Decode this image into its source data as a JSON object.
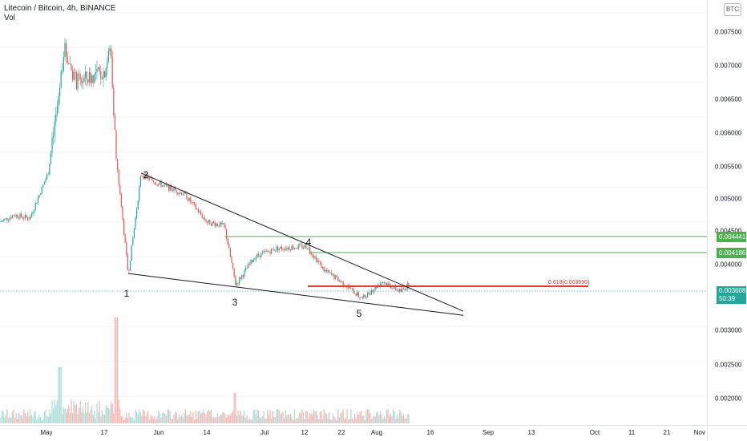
{
  "legend": {
    "title": "Litecoin / Bitcoin, 4h, BINANCE",
    "volume": "Vol"
  },
  "currency_badge": "BTC",
  "price_axis": {
    "ticks": [
      "0.007500",
      "0.007000",
      "0.006500",
      "0.006000",
      "0.005500",
      "0.005000",
      "0.004500",
      "0.004000",
      "0.003000",
      "0.002500",
      "0.002000"
    ]
  },
  "time_axis": {
    "ticks": [
      "May",
      "17",
      "Jun",
      "14",
      "Jul",
      "12",
      "22",
      "Aug",
      "16",
      "Sep",
      "13",
      "Oct",
      "11",
      "21",
      "Nov"
    ]
  },
  "price_tags": {
    "upper_line": "0.004441",
    "lower_line": "0.004186",
    "current_price": "0.003608",
    "countdown": "50:39"
  },
  "fib_label": "0.618(0.003690)",
  "wave_labels": [
    "1",
    "2",
    "3",
    "4",
    "5"
  ],
  "colors": {
    "up": "#26a69a",
    "down": "#ef5350",
    "vol_up": "#a8dcd6",
    "vol_down": "#f6b3b1",
    "trendline": "#131722",
    "horizontal_line": "#4caf50",
    "fib_line": "#e53935",
    "current_price_line": "#26a69a"
  },
  "chart_data": {
    "type": "candlestick",
    "title": "Litecoin / Bitcoin, 4h, BINANCE",
    "ylim": [
      0.0017,
      0.0078
    ],
    "price_series": [
      {
        "x": "May 01",
        "y": 0.0045
      },
      {
        "x": "May 05",
        "y": 0.0046
      },
      {
        "x": "May 09",
        "y": 0.00455
      },
      {
        "x": "May 11",
        "y": 0.0052
      },
      {
        "x": "May 12",
        "y": 0.0062
      },
      {
        "x": "May 14",
        "y": 0.007
      },
      {
        "x": "May 16",
        "y": 0.0065
      },
      {
        "x": "May 17",
        "y": 0.00665
      },
      {
        "x": "May 19",
        "y": 0.007
      },
      {
        "x": "May 20",
        "y": 0.0054
      },
      {
        "x": "May 23",
        "y": 0.00375
      },
      {
        "x": "May 27",
        "y": 0.00518
      },
      {
        "x": "Jun 01",
        "y": 0.00505
      },
      {
        "x": "Jun 08",
        "y": 0.0049
      },
      {
        "x": "Jun 14",
        "y": 0.0045
      },
      {
        "x": "Jun 19",
        "y": 0.00444
      },
      {
        "x": "Jun 22",
        "y": 0.0036
      },
      {
        "x": "Jun 28",
        "y": 0.004
      },
      {
        "x": "Jul 05",
        "y": 0.00412
      },
      {
        "x": "Jul 12",
        "y": 0.00415
      },
      {
        "x": "Jul 16",
        "y": 0.0038
      },
      {
        "x": "Jul 22",
        "y": 0.00365
      },
      {
        "x": "Jul 28",
        "y": 0.0034
      },
      {
        "x": "Aug 03",
        "y": 0.00365
      },
      {
        "x": "Aug 08",
        "y": 0.0035
      },
      {
        "x": "Aug 10",
        "y": 0.00361
      }
    ],
    "horizontal_levels": [
      0.004441,
      0.004186
    ],
    "fib_level": {
      "ratio": 0.618,
      "price": 0.00369
    },
    "current_price": 0.003608,
    "trendlines": [
      {
        "from": {
          "x": "May 27",
          "y": 0.0052
        },
        "to": {
          "x": "Aug 31",
          "y": 0.00322
        }
      },
      {
        "from": {
          "x": "May 23",
          "y": 0.00376
        },
        "to": {
          "x": "Aug 31",
          "y": 0.00316
        }
      }
    ],
    "wave_points": [
      {
        "label": "1",
        "x": "May 23",
        "y": 0.00375
      },
      {
        "label": "2",
        "x": "May 27",
        "y": 0.0052
      },
      {
        "label": "3",
        "x": "Jun 22",
        "y": 0.0036
      },
      {
        "label": "4",
        "x": "Jul 12",
        "y": 0.00415
      },
      {
        "label": "5",
        "x": "Jul 28",
        "y": 0.0034
      }
    ]
  }
}
